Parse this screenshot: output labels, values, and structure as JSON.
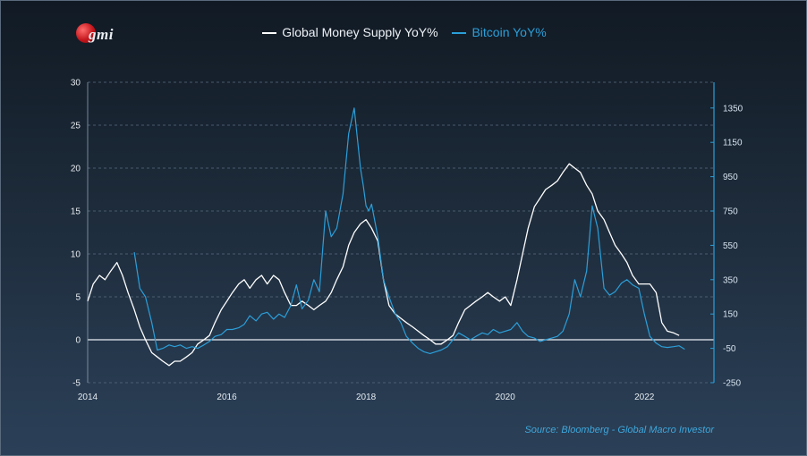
{
  "logo": {
    "text": "gmi"
  },
  "source": "Source: Bloomberg - Global Macro Investor",
  "colors": {
    "money": "#ffffff",
    "bitcoin": "#2b9fd9",
    "grid": "#5b6c80",
    "right_axis": "#2b9fd9"
  },
  "chart_data": {
    "type": "line",
    "title": "",
    "xlabel": "",
    "ylabel": "",
    "x_ticks": [
      "2014",
      "2016",
      "2018",
      "2020",
      "2022"
    ],
    "xlim": [
      2014.0,
      2023.0
    ],
    "left_axis": {
      "ticks": [
        30,
        25,
        20,
        15,
        10,
        5,
        0,
        -5
      ],
      "ylim": [
        -5,
        30
      ]
    },
    "right_axis": {
      "ticks": [
        1350,
        1150,
        950,
        750,
        550,
        350,
        150,
        -50,
        -250
      ],
      "ylim": [
        -250,
        1500
      ]
    },
    "grid": true,
    "legend_position": "top-center",
    "series": [
      {
        "name": "Global Money Supply YoY%",
        "axis": "left",
        "x": [
          2014.0,
          2014.08,
          2014.17,
          2014.25,
          2014.33,
          2014.42,
          2014.5,
          2014.58,
          2014.67,
          2014.75,
          2014.83,
          2014.92,
          2015.0,
          2015.08,
          2015.17,
          2015.25,
          2015.33,
          2015.42,
          2015.5,
          2015.58,
          2015.67,
          2015.75,
          2015.83,
          2015.92,
          2016.0,
          2016.08,
          2016.17,
          2016.25,
          2016.33,
          2016.42,
          2016.5,
          2016.58,
          2016.67,
          2016.75,
          2016.83,
          2016.92,
          2017.0,
          2017.08,
          2017.17,
          2017.25,
          2017.33,
          2017.42,
          2017.5,
          2017.58,
          2017.67,
          2017.75,
          2017.83,
          2017.92,
          2018.0,
          2018.08,
          2018.17,
          2018.25,
          2018.33,
          2018.42,
          2018.5,
          2018.58,
          2018.67,
          2018.75,
          2018.83,
          2018.92,
          2019.0,
          2019.08,
          2019.17,
          2019.25,
          2019.33,
          2019.42,
          2019.5,
          2019.58,
          2019.67,
          2019.75,
          2019.83,
          2019.92,
          2020.0,
          2020.08,
          2020.17,
          2020.25,
          2020.33,
          2020.42,
          2020.5,
          2020.58,
          2020.67,
          2020.75,
          2020.83,
          2020.92,
          2021.0,
          2021.08,
          2021.17,
          2021.25,
          2021.33,
          2021.42,
          2021.5,
          2021.58,
          2021.67,
          2021.75,
          2021.83,
          2021.92,
          2022.0,
          2022.08,
          2022.17,
          2022.25,
          2022.33,
          2022.42,
          2022.5
        ],
        "values": [
          4.5,
          6.5,
          7.5,
          7.0,
          8.0,
          9.0,
          7.5,
          5.5,
          3.5,
          1.5,
          0.0,
          -1.5,
          -2.0,
          -2.5,
          -3.0,
          -2.5,
          -2.5,
          -2.0,
          -1.5,
          -0.5,
          0.0,
          0.5,
          2.0,
          3.5,
          4.5,
          5.5,
          6.5,
          7.0,
          6.0,
          7.0,
          7.5,
          6.5,
          7.5,
          7.0,
          5.5,
          4.0,
          4.0,
          4.5,
          4.0,
          3.5,
          4.0,
          4.5,
          5.5,
          7.0,
          8.5,
          11.0,
          12.5,
          13.5,
          14.0,
          13.0,
          11.5,
          7.0,
          4.0,
          3.0,
          2.5,
          2.0,
          1.5,
          1.0,
          0.5,
          0.0,
          -0.5,
          -0.5,
          0.0,
          0.5,
          2.0,
          3.5,
          4.0,
          4.5,
          5.0,
          5.5,
          5.0,
          4.5,
          5.0,
          4.0,
          7.0,
          10.0,
          13.0,
          15.5,
          16.5,
          17.5,
          18.0,
          18.5,
          19.5,
          20.5,
          20.0,
          19.5,
          18.0,
          17.0,
          15.0,
          14.0,
          12.5,
          11.0,
          10.0,
          9.0,
          7.5,
          6.5,
          6.5,
          6.5,
          5.5,
          2.0,
          1.0,
          0.8,
          0.5
        ]
      },
      {
        "name": "Bitcoin YoY%",
        "axis": "right",
        "x": [
          2014.67,
          2014.75,
          2014.83,
          2014.92,
          2015.0,
          2015.08,
          2015.17,
          2015.25,
          2015.33,
          2015.42,
          2015.5,
          2015.58,
          2015.67,
          2015.75,
          2015.83,
          2015.92,
          2016.0,
          2016.08,
          2016.17,
          2016.25,
          2016.33,
          2016.42,
          2016.5,
          2016.58,
          2016.67,
          2016.75,
          2016.83,
          2016.92,
          2017.0,
          2017.08,
          2017.17,
          2017.25,
          2017.33,
          2017.42,
          2017.5,
          2017.58,
          2017.67,
          2017.75,
          2017.83,
          2017.92,
          2017.96,
          2018.0,
          2018.04,
          2018.08,
          2018.17,
          2018.25,
          2018.33,
          2018.42,
          2018.5,
          2018.58,
          2018.67,
          2018.75,
          2018.83,
          2018.92,
          2019.0,
          2019.08,
          2019.17,
          2019.25,
          2019.33,
          2019.42,
          2019.5,
          2019.58,
          2019.67,
          2019.75,
          2019.83,
          2019.92,
          2020.0,
          2020.08,
          2020.17,
          2020.25,
          2020.33,
          2020.42,
          2020.5,
          2020.58,
          2020.67,
          2020.75,
          2020.83,
          2020.92,
          2021.0,
          2021.08,
          2021.17,
          2021.25,
          2021.33,
          2021.42,
          2021.5,
          2021.58,
          2021.67,
          2021.75,
          2021.83,
          2021.92,
          2022.0,
          2022.08,
          2022.17,
          2022.25,
          2022.33,
          2022.42,
          2022.5,
          2022.58
        ],
        "values": [
          510,
          300,
          250,
          100,
          -60,
          -50,
          -30,
          -40,
          -30,
          -50,
          -40,
          -50,
          -30,
          -10,
          20,
          30,
          60,
          60,
          70,
          90,
          140,
          110,
          150,
          160,
          120,
          150,
          130,
          200,
          320,
          180,
          230,
          350,
          280,
          750,
          600,
          650,
          850,
          1200,
          1350,
          1000,
          900,
          780,
          750,
          790,
          600,
          350,
          250,
          150,
          100,
          20,
          -20,
          -50,
          -70,
          -80,
          -70,
          -60,
          -40,
          0,
          40,
          20,
          0,
          20,
          40,
          30,
          60,
          40,
          50,
          60,
          100,
          50,
          20,
          10,
          -10,
          0,
          10,
          20,
          50,
          150,
          350,
          250,
          400,
          780,
          650,
          300,
          260,
          280,
          330,
          350,
          320,
          300,
          150,
          20,
          -20,
          -40,
          -45,
          -40,
          -35,
          -55
        ]
      }
    ]
  }
}
